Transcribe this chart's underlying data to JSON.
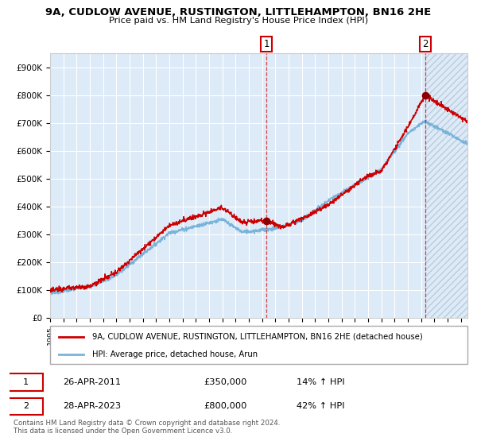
{
  "title": "9A, CUDLOW AVENUE, RUSTINGTON, LITTLEHAMPTON, BN16 2HE",
  "subtitle": "Price paid vs. HM Land Registry's House Price Index (HPI)",
  "ylim": [
    0,
    950000
  ],
  "yticks": [
    0,
    100000,
    200000,
    300000,
    400000,
    500000,
    600000,
    700000,
    800000,
    900000
  ],
  "ytick_labels": [
    "£0",
    "£100K",
    "£200K",
    "£300K",
    "£400K",
    "£500K",
    "£600K",
    "£700K",
    "£800K",
    "£900K"
  ],
  "xlim_start": 1995.0,
  "xlim_end": 2026.5,
  "bg_color": "#ddeaf7",
  "grid_color": "#ffffff",
  "hpi_line_color": "#7ab3d9",
  "price_line_color": "#cc0000",
  "marker1_x": 2011.32,
  "marker1_y": 350000,
  "marker2_x": 2023.32,
  "marker2_y": 800000,
  "vline1_x": 2011.32,
  "vline2_x": 2023.32,
  "legend_label_red": "9A, CUDLOW AVENUE, RUSTINGTON, LITTLEHAMPTON, BN16 2HE (detached house)",
  "legend_label_blue": "HPI: Average price, detached house, Arun",
  "table_row1": [
    "1",
    "26-APR-2011",
    "£350,000",
    "14% ↑ HPI"
  ],
  "table_row2": [
    "2",
    "28-APR-2023",
    "£800,000",
    "42% ↑ HPI"
  ],
  "footnote": "Contains HM Land Registry data © Crown copyright and database right 2024.\nThis data is licensed under the Open Government Licence v3.0.",
  "hatch_region_start": 2023.32,
  "hatch_region_end": 2026.5
}
